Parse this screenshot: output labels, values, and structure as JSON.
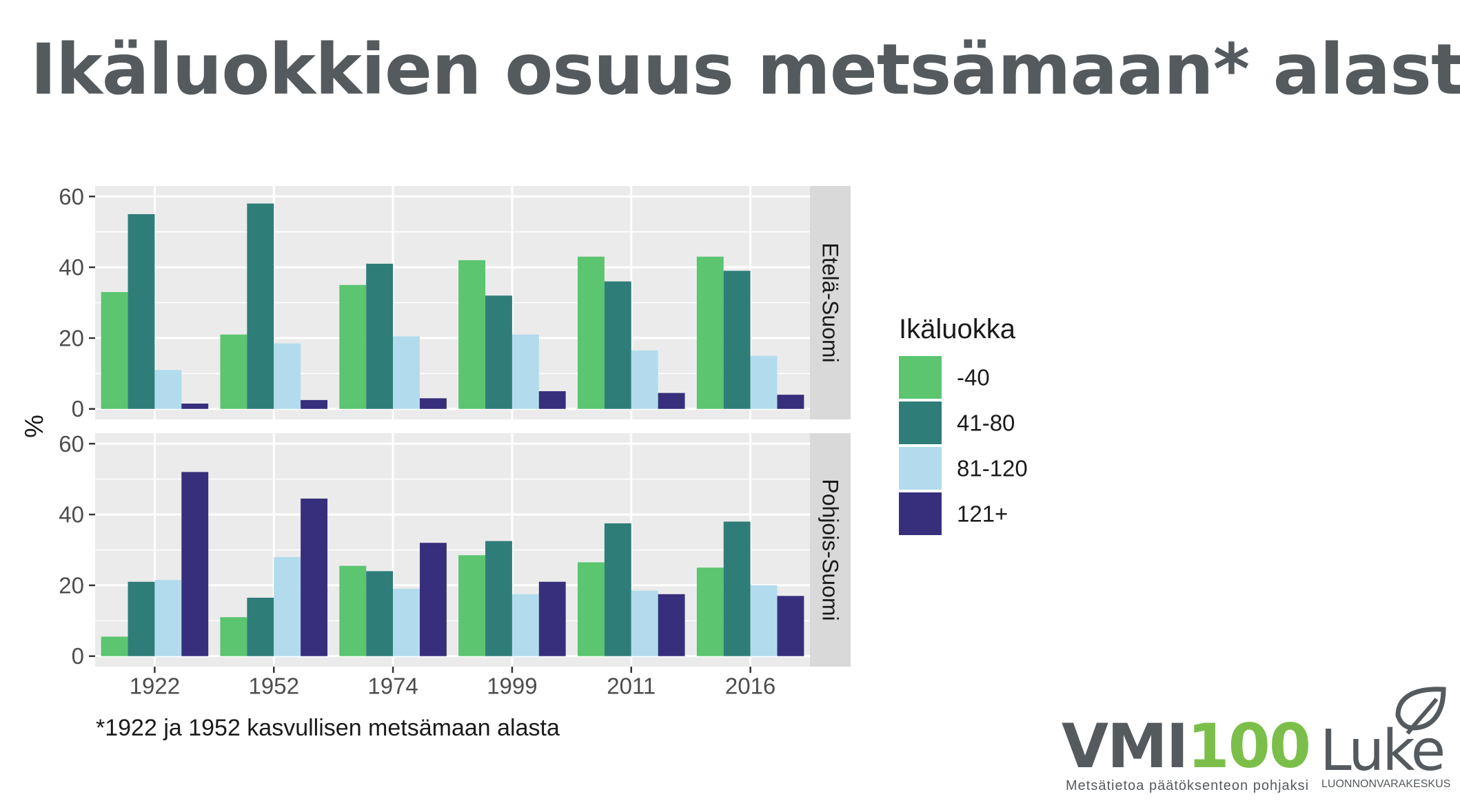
{
  "title": "Ikäluokkien osuus metsämaan* alasta",
  "footnote": "*1922 ja 1952 kasvullisen metsämaan alasta",
  "logos": {
    "vmi_prefix": "VMI",
    "vmi_number": "100",
    "vmi_tagline": "Metsätietoa päätöksenteon pohjaksi",
    "luke_name": "Luke",
    "luke_tagline": "LUONNONVARAKESKUS"
  },
  "colors": {
    "panel_bg": "#ebebeb",
    "strip_bg": "#d9d9d9",
    "grid": "#ffffff",
    "axis_text": "#4d4d4d"
  },
  "chart_data": {
    "type": "bar",
    "categories": [
      "1922",
      "1952",
      "1974",
      "1999",
      "2011",
      "2016"
    ],
    "ylabel": "%",
    "xlabel": "",
    "ylim": [
      0,
      60
    ],
    "yticks": [
      0,
      20,
      40,
      60
    ],
    "grid": true,
    "legend": {
      "title": "Ikäluokka",
      "position": "right",
      "items": [
        {
          "name": "-40",
          "color": "#5bc570"
        },
        {
          "name": "41-80",
          "color": "#2f7d79"
        },
        {
          "name": "81-120",
          "color": "#b2dced"
        },
        {
          "name": "121+",
          "color": "#372f7c"
        }
      ]
    },
    "panels": [
      {
        "name": "Etelä-Suomi",
        "series": [
          {
            "name": "-40",
            "values": [
              33,
              21,
              35,
              42,
              43,
              43
            ]
          },
          {
            "name": "41-80",
            "values": [
              55,
              58,
              41,
              32,
              36,
              39
            ]
          },
          {
            "name": "81-120",
            "values": [
              11,
              18.5,
              20.5,
              21,
              16.5,
              15
            ]
          },
          {
            "name": "121+",
            "values": [
              1.5,
              2.5,
              3,
              5,
              4.5,
              4
            ]
          }
        ]
      },
      {
        "name": "Pohjois-Suomi",
        "series": [
          {
            "name": "-40",
            "values": [
              5.5,
              11,
              25.5,
              28.5,
              26.5,
              25
            ]
          },
          {
            "name": "41-80",
            "values": [
              21,
              16.5,
              24,
              32.5,
              37.5,
              38
            ]
          },
          {
            "name": "81-120",
            "values": [
              21.5,
              28,
              19,
              17.5,
              18.5,
              20
            ]
          },
          {
            "name": "121+",
            "values": [
              52,
              44.5,
              32,
              21,
              17.5,
              17
            ]
          }
        ]
      }
    ]
  }
}
